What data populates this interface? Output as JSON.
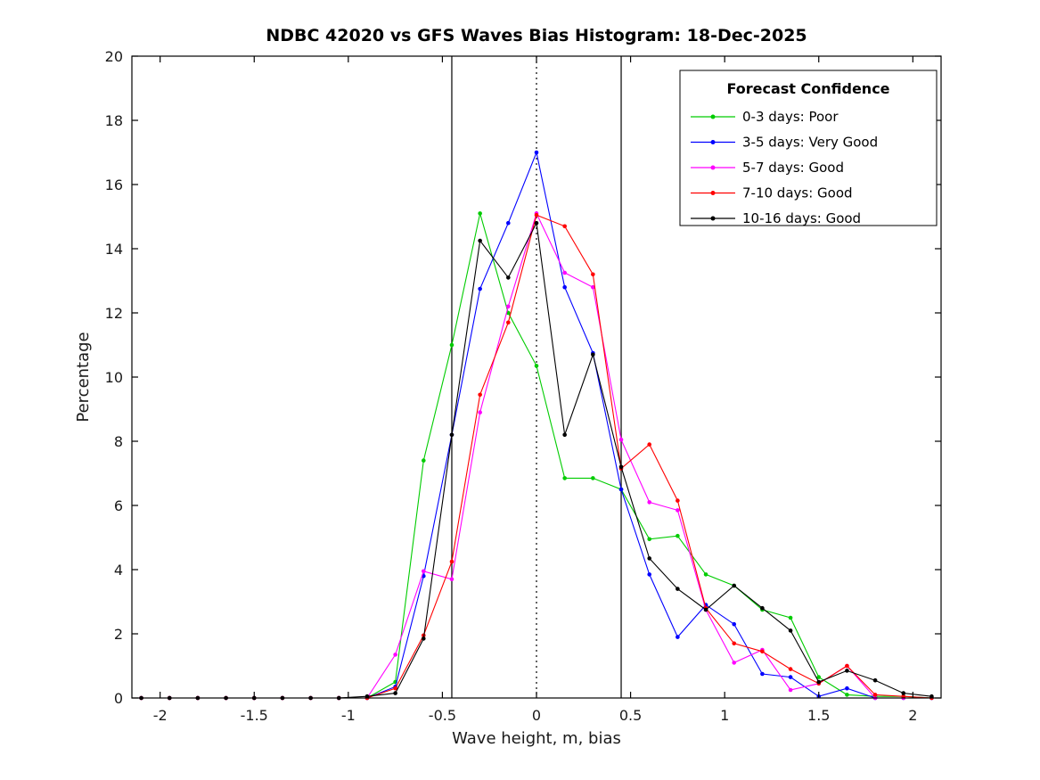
{
  "chart_data": {
    "type": "line",
    "title": "NDBC 42020 vs GFS Waves Bias Histogram: 18-Dec-2025",
    "xlabel": "Wave height, m, bias",
    "ylabel": "Percentage",
    "xlim": [
      -2.15,
      2.15
    ],
    "ylim": [
      0,
      20
    ],
    "xticks": [
      -2,
      -1.5,
      -1,
      -0.5,
      0,
      0.5,
      1,
      1.5,
      2
    ],
    "xtick_labels": [
      "-2",
      "-1.5",
      "-1",
      "-0.5",
      "0",
      "0.5",
      "1",
      "1.5",
      "2"
    ],
    "yticks": [
      0,
      2,
      4,
      6,
      8,
      10,
      12,
      14,
      16,
      18,
      20
    ],
    "grid": false,
    "marker": "dot",
    "x": [
      -2.1,
      -1.95,
      -1.8,
      -1.65,
      -1.5,
      -1.35,
      -1.2,
      -1.05,
      -0.9,
      -0.75,
      -0.6,
      -0.45,
      -0.3,
      -0.15,
      0,
      0.15,
      0.3,
      0.45,
      0.6,
      0.75,
      0.9,
      1.05,
      1.2,
      1.35,
      1.5,
      1.65,
      1.8,
      1.95,
      2.1
    ],
    "series": [
      {
        "name": "0-3 days: Poor",
        "color": "#00cc00",
        "values": [
          0,
          0,
          0,
          0,
          0,
          0,
          0,
          0,
          0,
          0.5,
          7.4,
          11.0,
          15.1,
          12.0,
          10.35,
          6.85,
          6.85,
          6.5,
          4.95,
          5.05,
          3.85,
          3.5,
          2.75,
          2.5,
          0.65,
          0.1,
          0.05,
          0.05,
          0
        ]
      },
      {
        "name": "3-5 days: Very Good",
        "color": "#0000ff",
        "values": [
          0,
          0,
          0,
          0,
          0,
          0,
          0,
          0,
          0,
          0.35,
          3.8,
          8.2,
          12.75,
          14.8,
          17.0,
          12.8,
          10.75,
          6.5,
          3.85,
          1.9,
          2.9,
          2.3,
          0.75,
          0.65,
          0.05,
          0.3,
          0,
          0,
          0
        ]
      },
      {
        "name": "5-7 days: Good",
        "color": "#ff00ff",
        "values": [
          0,
          0,
          0,
          0,
          0,
          0,
          0,
          0,
          0,
          1.35,
          3.95,
          3.7,
          8.9,
          12.2,
          15.1,
          13.25,
          12.8,
          8.05,
          6.1,
          5.85,
          2.75,
          1.1,
          1.5,
          0.25,
          0.45,
          1.0,
          0,
          0,
          0
        ]
      },
      {
        "name": "7-10 days: Good",
        "color": "#ff0000",
        "values": [
          0,
          0,
          0,
          0,
          0,
          0,
          0,
          0,
          0,
          0.3,
          1.95,
          4.25,
          9.45,
          11.7,
          15.05,
          14.7,
          13.2,
          7.15,
          7.9,
          6.15,
          2.8,
          1.7,
          1.45,
          0.9,
          0.45,
          1.0,
          0.1,
          0.05,
          0
        ]
      },
      {
        "name": "10-16 days: Good",
        "color": "#000000",
        "values": [
          0,
          0,
          0,
          0,
          0,
          0,
          0,
          0,
          0.05,
          0.15,
          1.85,
          8.2,
          14.25,
          13.1,
          14.8,
          8.2,
          10.7,
          7.2,
          4.35,
          3.4,
          2.75,
          3.5,
          2.8,
          2.1,
          0.5,
          0.85,
          0.55,
          0.15,
          0.05
        ]
      }
    ],
    "legend": {
      "title": "Forecast Confidence",
      "position": "top-right"
    },
    "reference_lines": [
      {
        "x": -0.45,
        "style": "solid",
        "color": "#000000"
      },
      {
        "x": 0,
        "style": "dotted",
        "color": "#000000"
      },
      {
        "x": 0.45,
        "style": "solid",
        "color": "#000000"
      }
    ]
  }
}
